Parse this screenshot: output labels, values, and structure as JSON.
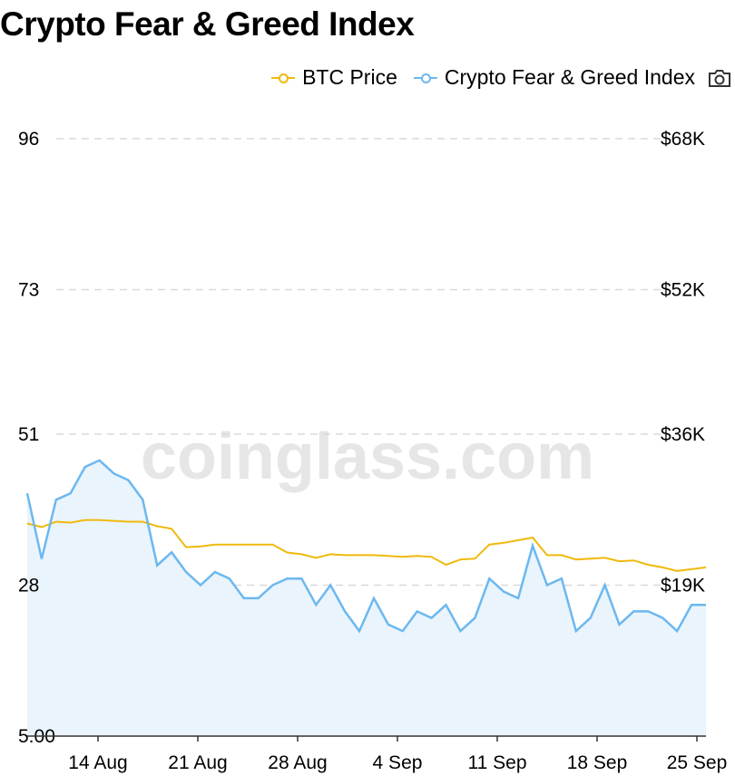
{
  "title": "Crypto Fear & Greed Index",
  "watermark": "coinglass.com",
  "legend": {
    "btc_label": "BTC Price",
    "fgi_label": "Crypto Fear & Greed Index",
    "camera_icon": "camera-icon"
  },
  "colors": {
    "btc": "#f0b90b",
    "fgi": "#6cb8f0",
    "fgi_fill": "#eaf4fc",
    "grid": "#d9d9d9"
  },
  "chart_data": {
    "type": "line",
    "title": "Crypto Fear & Greed Index",
    "x_tick_labels": [
      "14 Aug",
      "21 Aug",
      "28 Aug",
      "4 Sep",
      "11 Sep",
      "18 Sep",
      "25 Sep"
    ],
    "x_tick_day_index": [
      3,
      10,
      17,
      24,
      31,
      38,
      45
    ],
    "y_left": {
      "ticks": [
        "96",
        "73",
        "51",
        "28",
        "5.00"
      ],
      "min": 5,
      "max": 96
    },
    "y_right": {
      "ticks": [
        "$68K",
        "$52K",
        "$36K",
        "$19K"
      ],
      "min": 0,
      "max": 68000
    },
    "grid": true,
    "legend_position": "top-right",
    "series": [
      {
        "name": "Crypto Fear & Greed Index",
        "axis": "left",
        "values": [
          42,
          32,
          41,
          42,
          46,
          47,
          45,
          44,
          41,
          31,
          33,
          30,
          28,
          30,
          29,
          26,
          26,
          28,
          29,
          29,
          25,
          28,
          24,
          21,
          26,
          22,
          21,
          24,
          23,
          25,
          21,
          23,
          29,
          27,
          26,
          34,
          28,
          29,
          21,
          23,
          28,
          22,
          24,
          24,
          23,
          21,
          25,
          25
        ]
      },
      {
        "name": "BTC Price",
        "axis": "right",
        "values": [
          24200,
          23800,
          24400,
          24300,
          24600,
          24600,
          24500,
          24400,
          24400,
          23900,
          23600,
          21500,
          21600,
          21800,
          21800,
          21800,
          21800,
          21800,
          20900,
          20700,
          20300,
          20700,
          20600,
          20600,
          20600,
          20500,
          20400,
          20500,
          20400,
          19500,
          20100,
          20200,
          21800,
          22000,
          22300,
          22600,
          20600,
          20600,
          20100,
          20200,
          20300,
          19900,
          20000,
          19500,
          19200,
          18800,
          19000,
          19200
        ]
      }
    ]
  }
}
